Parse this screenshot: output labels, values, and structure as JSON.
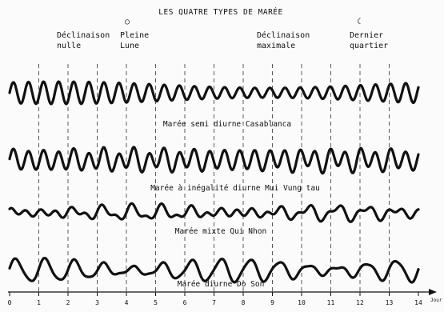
{
  "title": "LES QUATRE TYPES DE MARÉE",
  "events": [
    {
      "line1": "Déclinaison",
      "line2": "nulle",
      "symbol": ""
    },
    {
      "line1": "Pleine",
      "line2": "Lune",
      "symbol": "○"
    },
    {
      "line1": "Déclinaison",
      "line2": "maximale",
      "symbol": ""
    },
    {
      "line1": "Dernier",
      "line2": "quartier",
      "symbol": "☾"
    }
  ],
  "captions": [
    "Marée semi diurne Casablanca",
    "Marée à inégalité diurne Mui Vung tau",
    "Marée mixte Qui Nhon",
    "Marée diurne Do Son"
  ],
  "axis": {
    "ticks": [
      "0",
      "1",
      "2",
      "3",
      "4",
      "5",
      "6",
      "7",
      "8",
      "9",
      "10",
      "11",
      "12",
      "13",
      "14"
    ],
    "unit": "Jour"
  }
}
